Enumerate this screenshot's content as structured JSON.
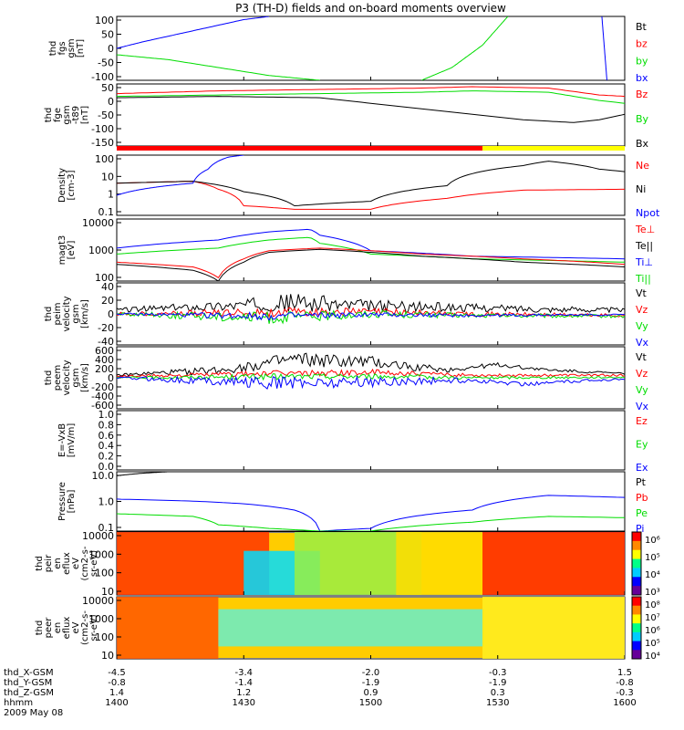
{
  "title": "P3 (TH-D) fields and on-board moments overview",
  "colors": {
    "black": "#000000",
    "red": "#ff0000",
    "green": "#00dd00",
    "blue": "#0000ff",
    "yellow": "#ffff00"
  },
  "chart_data": [
    {
      "id": "fgs",
      "type": "line",
      "ylabel": [
        "thd",
        "fgs",
        "gsm",
        "[nT]"
      ],
      "yticks": [
        "100",
        "50",
        "0",
        "-50",
        "-100"
      ],
      "ylim": [
        -100,
        100
      ],
      "legend": [
        {
          "label": "Bt",
          "color": "#000000"
        },
        {
          "label": "bz",
          "color": "#ff0000"
        },
        {
          "label": "by",
          "color": "#00dd00"
        },
        {
          "label": "bx",
          "color": "#0000ff"
        }
      ],
      "series": [
        {
          "name": "bx",
          "color": "#0000ff",
          "x": [
            0,
            0.05,
            0.15,
            0.25,
            0.3
          ],
          "y": [
            0,
            20,
            55,
            90,
            100
          ]
        },
        {
          "name": "by",
          "color": "#00dd00",
          "x": [
            0,
            0.1,
            0.2,
            0.3,
            0.4
          ],
          "y": [
            -20,
            -35,
            -60,
            -85,
            -100
          ]
        },
        {
          "name": "by2",
          "color": "#00dd00",
          "x": [
            0.6,
            0.66,
            0.72,
            0.77
          ],
          "y": [
            -100,
            -60,
            10,
            100
          ]
        },
        {
          "name": "bx2",
          "color": "#0000ff",
          "x": [
            0.955,
            0.96,
            0.965
          ],
          "y": [
            100,
            0,
            -100
          ]
        }
      ]
    },
    {
      "id": "fge",
      "type": "line",
      "ylabel": [
        "thd",
        "fge",
        "gsm",
        "-t89",
        "[nT]"
      ],
      "yticks": [
        "50",
        "0",
        "-50",
        "-100",
        "-150"
      ],
      "ylim": [
        -175,
        50
      ],
      "legend": [
        {
          "label": "Bz",
          "color": "#ff0000"
        },
        {
          "label": "By",
          "color": "#00dd00"
        },
        {
          "label": "Bx",
          "color": "#000000"
        }
      ],
      "series": [
        {
          "name": "Bz",
          "color": "#ff0000",
          "x": [
            0,
            0.2,
            0.4,
            0.6,
            0.7,
            0.85,
            0.95,
            1
          ],
          "y": [
            15,
            25,
            30,
            35,
            40,
            35,
            10,
            5
          ]
        },
        {
          "name": "By",
          "color": "#00dd00",
          "x": [
            0,
            0.2,
            0.4,
            0.6,
            0.7,
            0.85,
            0.95,
            1
          ],
          "y": [
            5,
            10,
            15,
            20,
            25,
            20,
            -10,
            -20
          ]
        },
        {
          "name": "Bx",
          "color": "#000000",
          "x": [
            0,
            0.2,
            0.4,
            0.5,
            0.6,
            0.7,
            0.8,
            0.9,
            0.95,
            1
          ],
          "y": [
            0,
            5,
            0,
            -20,
            -40,
            -60,
            -80,
            -90,
            -80,
            -60
          ]
        }
      ]
    },
    {
      "id": "bar",
      "type": "bar",
      "segments": [
        {
          "from": 0,
          "to": 0.72,
          "color": "#ff0000"
        },
        {
          "from": 0.72,
          "to": 1,
          "color": "#ffff00"
        }
      ]
    },
    {
      "id": "density",
      "type": "line",
      "ylabel": [
        "Density",
        "[cm-3]"
      ],
      "yticks": [
        "100",
        "10",
        "1",
        "0.1"
      ],
      "ylim": [
        0.1,
        100
      ],
      "scale": "log",
      "legend": [
        {
          "label": "Ne",
          "color": "#ff0000"
        },
        {
          "label": "Ni",
          "color": "#000000"
        },
        {
          "label": "Npot",
          "color": "#0000ff"
        }
      ],
      "series": [
        {
          "name": "Ne",
          "color": "#ff0000",
          "x": [
            0,
            0.15,
            0.2,
            0.25,
            0.35,
            0.5,
            0.65,
            0.8,
            1
          ],
          "y": [
            4,
            5,
            2,
            0.3,
            0.2,
            0.2,
            0.7,
            1.8,
            2
          ]
        },
        {
          "name": "Ni",
          "color": "#000000",
          "x": [
            0,
            0.15,
            0.25,
            0.35,
            0.5,
            0.65,
            0.8,
            0.85,
            0.95,
            1
          ],
          "y": [
            4,
            5,
            1.5,
            0.3,
            0.5,
            3,
            30,
            50,
            20,
            15
          ]
        },
        {
          "name": "Npot",
          "color": "#0000ff",
          "x": [
            0,
            0.15,
            0.18,
            0.22,
            0.25
          ],
          "y": [
            1,
            4,
            20,
            80,
            100
          ]
        }
      ]
    },
    {
      "id": "temp",
      "type": "line",
      "ylabel": [
        "magt3",
        "[eV]"
      ],
      "yticks": [
        "10000",
        "1000",
        "100"
      ],
      "ylim": [
        60,
        12000
      ],
      "scale": "log",
      "legend": [
        {
          "label": "Te⊥",
          "color": "#ff0000"
        },
        {
          "label": "Te||",
          "color": "#000000"
        },
        {
          "label": "Ti⊥",
          "color": "#0000ff"
        },
        {
          "label": "Ti||",
          "color": "#00dd00"
        }
      ],
      "series": [
        {
          "name": "Ti⊥",
          "color": "#0000ff",
          "x": [
            0,
            0.2,
            0.3,
            0.38,
            0.4,
            0.5,
            0.7,
            1
          ],
          "y": [
            1000,
            2000,
            4000,
            5000,
            3000,
            800,
            500,
            400
          ]
        },
        {
          "name": "Ti||",
          "color": "#00dd00",
          "x": [
            0,
            0.2,
            0.3,
            0.38,
            0.4,
            0.5,
            0.7,
            1
          ],
          "y": [
            600,
            1000,
            2000,
            2500,
            1500,
            600,
            400,
            300
          ]
        },
        {
          "name": "Te⊥",
          "color": "#ff0000",
          "x": [
            0,
            0.15,
            0.2,
            0.25,
            0.3,
            0.4,
            0.6,
            0.8,
            1
          ],
          "y": [
            300,
            200,
            80,
            400,
            800,
            1000,
            600,
            400,
            250
          ]
        },
        {
          "name": "Te||",
          "color": "#000000",
          "x": [
            0,
            0.15,
            0.2,
            0.25,
            0.3,
            0.4,
            0.6,
            0.8,
            1
          ],
          "y": [
            250,
            150,
            60,
            300,
            700,
            900,
            500,
            300,
            200
          ]
        }
      ]
    },
    {
      "id": "peim",
      "type": "line",
      "ylabel": [
        "thd",
        "peim",
        "velocity",
        "gsm",
        "[km/s]"
      ],
      "yticks": [
        "40",
        "20",
        "0",
        "-20",
        "-40"
      ],
      "ylim": [
        -40,
        40
      ],
      "noisy": true,
      "legend": [
        {
          "label": "Vt",
          "color": "#000000"
        },
        {
          "label": "Vz",
          "color": "#ff0000"
        },
        {
          "label": "Vy",
          "color": "#00dd00"
        },
        {
          "label": "Vx",
          "color": "#0000ff"
        }
      ],
      "series": [
        {
          "name": "Vt",
          "color": "#000000",
          "x": [
            0,
            0.2,
            0.35,
            0.5,
            0.7,
            0.85,
            1
          ],
          "y": [
            5,
            10,
            15,
            10,
            8,
            6,
            5
          ],
          "amp": [
            3,
            6,
            12,
            8,
            5,
            4,
            3
          ]
        },
        {
          "name": "Vz",
          "color": "#ff0000",
          "x": [
            0,
            0.3,
            0.5,
            0.7,
            1
          ],
          "y": [
            0,
            2,
            3,
            0,
            -2
          ],
          "amp": [
            2,
            6,
            5,
            3,
            2
          ]
        },
        {
          "name": "Vy",
          "color": "#00dd00",
          "x": [
            0,
            0.3,
            0.5,
            0.7,
            1
          ],
          "y": [
            0,
            -5,
            0,
            -2,
            -3
          ],
          "amp": [
            2,
            8,
            5,
            3,
            2
          ]
        },
        {
          "name": "Vx",
          "color": "#0000ff",
          "x": [
            0,
            0.3,
            0.5,
            0.7,
            1
          ],
          "y": [
            0,
            -3,
            -1,
            -2,
            -1
          ],
          "amp": [
            1,
            5,
            3,
            2,
            1
          ]
        }
      ]
    },
    {
      "id": "peem",
      "type": "line",
      "ylabel": [
        "thd",
        "peem",
        "velocity",
        "gsm",
        "[km/s]"
      ],
      "yticks": [
        "600",
        "400",
        "200",
        "0",
        "-200",
        "-400",
        "-600"
      ],
      "ylim": [
        -600,
        600
      ],
      "noisy": true,
      "legend": [
        {
          "label": "Vt",
          "color": "#000000"
        },
        {
          "label": "Vz",
          "color": "#ff0000"
        },
        {
          "label": "Vy",
          "color": "#00dd00"
        },
        {
          "label": "Vx",
          "color": "#0000ff"
        }
      ],
      "series": [
        {
          "name": "Vt",
          "color": "#000000",
          "x": [
            0,
            0.2,
            0.35,
            0.5,
            0.65,
            0.75,
            0.85,
            1
          ],
          "y": [
            50,
            150,
            350,
            300,
            150,
            250,
            150,
            80
          ],
          "amp": [
            20,
            80,
            150,
            120,
            50,
            40,
            30,
            20
          ]
        },
        {
          "name": "Vz",
          "color": "#ff0000",
          "x": [
            0,
            0.3,
            0.5,
            0.7,
            1
          ],
          "y": [
            30,
            80,
            100,
            50,
            50
          ],
          "amp": [
            20,
            60,
            60,
            30,
            20
          ]
        },
        {
          "name": "Vy",
          "color": "#00dd00",
          "x": [
            0,
            0.3,
            0.5,
            0.7,
            1
          ],
          "y": [
            0,
            20,
            30,
            0,
            10
          ],
          "amp": [
            15,
            60,
            50,
            30,
            15
          ]
        },
        {
          "name": "Vx",
          "color": "#0000ff",
          "x": [
            0,
            0.3,
            0.5,
            0.7,
            0.8,
            1
          ],
          "y": [
            0,
            -100,
            -80,
            -50,
            -120,
            -20
          ],
          "amp": [
            20,
            120,
            100,
            50,
            40,
            20
          ]
        }
      ]
    },
    {
      "id": "efield",
      "type": "line",
      "ylabel": [
        "E=-VxB",
        "[mV/m]"
      ],
      "yticks": [
        "1.0",
        "0.8",
        "0.6",
        "0.4",
        "0.2",
        "0.0"
      ],
      "ylim": [
        0,
        1
      ],
      "legend": [
        {
          "label": "Ez",
          "color": "#ff0000"
        },
        {
          "label": "Ey",
          "color": "#00dd00"
        },
        {
          "label": "Ex",
          "color": "#0000ff"
        }
      ],
      "series": []
    },
    {
      "id": "pressure",
      "type": "line",
      "ylabel": [
        "Pressure",
        "[nPa]"
      ],
      "yticks": [
        "10.0",
        "1.0",
        "0.1"
      ],
      "ylim": [
        0.03,
        20
      ],
      "scale": "log",
      "legend": [
        {
          "label": "Pt",
          "color": "#000000"
        },
        {
          "label": "Pb",
          "color": "#ff0000"
        },
        {
          "label": "Pe",
          "color": "#00dd00"
        },
        {
          "label": "Pi",
          "color": "#0000ff"
        }
      ],
      "series": [
        {
          "name": "Pt",
          "color": "#000000",
          "x": [
            0,
            0.05,
            0.1
          ],
          "y": [
            13,
            17,
            20
          ]
        },
        {
          "name": "Pi",
          "color": "#0000ff",
          "x": [
            0,
            0.15,
            0.25,
            0.35,
            0.4,
            0.5,
            0.7,
            0.85,
            1
          ],
          "y": [
            1,
            0.8,
            0.6,
            0.3,
            0.03,
            0.04,
            0.3,
            1.5,
            1.2
          ]
        },
        {
          "name": "Pe",
          "color": "#00dd00",
          "x": [
            0,
            0.15,
            0.2,
            0.3,
            0.4,
            0.5,
            0.7,
            0.85,
            1
          ],
          "y": [
            0.2,
            0.15,
            0.06,
            0.04,
            0.03,
            0.03,
            0.08,
            0.15,
            0.13
          ]
        }
      ]
    },
    {
      "id": "eir",
      "type": "heatmap",
      "ylabel": [
        "thd",
        "peir",
        "en",
        "eflux",
        "eV",
        "(cm2-s-",
        "sr-eV)"
      ],
      "yticks": [
        "10000",
        "1000",
        "100",
        "10"
      ],
      "colorbar": {
        "ticks": [
          "10⁶",
          "10⁵",
          "10⁴",
          "10³"
        ]
      },
      "blocks": [
        {
          "x0": 0,
          "x1": 0.3,
          "y0": 0,
          "y1": 1,
          "color": "#ff3300"
        },
        {
          "x0": 0.25,
          "x1": 0.4,
          "y0": 0.3,
          "y1": 1,
          "color": "#00ddff"
        },
        {
          "x0": 0.35,
          "x1": 0.6,
          "y0": 0,
          "y1": 1,
          "color": "#99ee44"
        },
        {
          "x0": 0.55,
          "x1": 0.72,
          "y0": 0,
          "y1": 1,
          "color": "#ffdd00"
        },
        {
          "x0": 0.72,
          "x1": 1,
          "y0": 0,
          "y1": 1,
          "color": "#ff2200"
        }
      ]
    },
    {
      "id": "eer",
      "type": "heatmap",
      "ylabel": [
        "thd",
        "peer",
        "en",
        "eflux",
        "eV",
        "(cm2-s-",
        "sr-eV)"
      ],
      "yticks": [
        "10000",
        "1000",
        "100",
        "10"
      ],
      "colorbar": {
        "ticks": [
          "10⁸",
          "10⁷",
          "10⁶",
          "10⁵",
          "10⁴"
        ]
      },
      "blocks": [
        {
          "x0": 0,
          "x1": 0.2,
          "y0": 0,
          "y1": 1,
          "color": "#ff5500"
        },
        {
          "x0": 0.2,
          "x1": 0.72,
          "y0": 0.2,
          "y1": 0.8,
          "color": "#66eecc"
        },
        {
          "x0": 0.72,
          "x1": 1,
          "y0": 0,
          "y1": 1,
          "color": "#ffee22"
        }
      ]
    }
  ],
  "xaxis": {
    "rows": [
      {
        "label": "thd_X-GSM",
        "values": [
          "-4.5",
          "-3.4",
          "-2.0",
          "-0.3",
          "1.5"
        ]
      },
      {
        "label": "thd_Y-GSM",
        "values": [
          "-0.8",
          "-1.4",
          "-1.9",
          "-1.9",
          "-0.8"
        ]
      },
      {
        "label": "thd_Z-GSM",
        "values": [
          "1.4",
          "1.2",
          "0.9",
          "0.3",
          "-0.3"
        ]
      },
      {
        "label": "hhmm",
        "values": [
          "1400",
          "1430",
          "1500",
          "1530",
          "1600"
        ]
      }
    ],
    "date": "2009 May 08"
  }
}
